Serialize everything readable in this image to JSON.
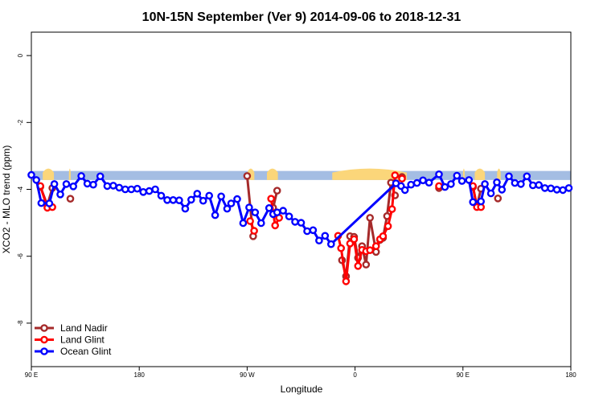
{
  "chart_data": {
    "type": "line",
    "title": "10N-15N September (Ver 9)   2014-09-06 to 2018-12-31",
    "xlabel": "Longitude",
    "ylabel": "XCO2 - MLO trend (ppm)",
    "xlim": [
      -90,
      180
    ],
    "ylim": [
      -9.3,
      0.7
    ],
    "x_ticks": [
      {
        "value": -90,
        "label": "90 E"
      },
      {
        "value": -36,
        "label": "180"
      },
      {
        "value": 18,
        "label": "90 W"
      },
      {
        "value": 72,
        "label": "0"
      },
      {
        "value": 126,
        "label": "90 E"
      },
      {
        "value": 180,
        "label": "180"
      }
    ],
    "y_ticks": [
      0,
      -2,
      -4,
      -6,
      -8
    ],
    "legend_position": "bottom-left",
    "band": {
      "y_top": -3.45,
      "y_bottom": -3.72,
      "color": "#a4bde3",
      "land_color": "#fbd67a"
    },
    "land_segments": [
      [
        -84.3,
        -78.7
      ],
      [
        -71.2,
        -70.3
      ],
      [
        18.0,
        21.6
      ],
      [
        27.9,
        33.4
      ],
      [
        60.6,
        97.9
      ],
      [
        126.0,
        126.9
      ],
      [
        131.9,
        137.0
      ],
      [
        143.1,
        144.9
      ]
    ],
    "series": [
      {
        "name": "Land Nadir",
        "color": "#a52a2a",
        "points": [
          [
            -85.5,
            -3.92
          ],
          [
            -82.0,
            -4.47
          ],
          [
            -79.5,
            -3.96
          ],
          [
            null,
            null
          ],
          [
            -70.5,
            -4.28
          ],
          [
            null,
            null
          ],
          [
            18.0,
            -3.6
          ],
          [
            21.0,
            -5.4
          ],
          [
            null,
            null
          ],
          [
            31.0,
            -4.55
          ],
          [
            33.0,
            -4.04
          ],
          [
            null,
            null
          ],
          [
            65.5,
            -6.12
          ],
          [
            67.5,
            -6.6
          ],
          [
            69.5,
            -5.4
          ],
          [
            71.5,
            -5.42
          ],
          [
            73.5,
            -6.05
          ],
          [
            75.5,
            -5.7
          ],
          [
            77.5,
            -6.25
          ],
          [
            79.5,
            -4.85
          ],
          [
            82.5,
            -5.87
          ],
          [
            84.5,
            -5.51
          ],
          [
            86.0,
            -5.45
          ],
          [
            88.0,
            -4.8
          ],
          [
            90.0,
            -3.8
          ],
          [
            92.0,
            -4.18
          ],
          [
            null,
            null
          ],
          [
            95.5,
            -3.63
          ],
          [
            null,
            null
          ],
          [
            114.0,
            -3.96
          ],
          [
            null,
            null
          ],
          [
            131.0,
            -3.93
          ],
          [
            133.0,
            -4.5
          ],
          [
            135.0,
            -3.98
          ],
          [
            null,
            null
          ],
          [
            143.5,
            -4.27
          ]
        ]
      },
      {
        "name": "Land Glint",
        "color": "#ff0000",
        "points": [
          [
            -85.5,
            -3.9
          ],
          [
            -82.0,
            -4.55
          ],
          [
            -79.5,
            -4.53
          ],
          [
            null,
            null
          ],
          [
            19.5,
            -4.95
          ],
          [
            21.5,
            -5.24
          ],
          [
            null,
            null
          ],
          [
            30.0,
            -4.28
          ],
          [
            32.0,
            -5.08
          ],
          [
            34.0,
            -4.85
          ],
          [
            null,
            null
          ],
          [
            63.5,
            -5.39
          ],
          [
            65.0,
            -5.76
          ],
          [
            67.5,
            -6.75
          ],
          [
            69.5,
            -5.62
          ],
          [
            71.5,
            -5.49
          ],
          [
            73.5,
            -6.29
          ],
          [
            75.5,
            -5.81
          ],
          [
            77.5,
            -5.85
          ],
          [
            79.5,
            -5.82
          ],
          [
            82.5,
            -5.7
          ],
          [
            84.5,
            -5.49
          ],
          [
            86.0,
            -5.4
          ],
          [
            88.5,
            -5.1
          ],
          [
            90.5,
            -4.59
          ],
          [
            92.0,
            -3.58
          ],
          [
            null,
            null
          ],
          [
            95.5,
            -3.68
          ],
          [
            null,
            null
          ],
          [
            114.0,
            -3.9
          ],
          [
            null,
            null
          ],
          [
            131.0,
            -3.9
          ],
          [
            133.0,
            -4.53
          ],
          [
            135.0,
            -4.53
          ]
        ]
      },
      {
        "name": "Ocean Glint",
        "color": "#0000ff",
        "points": [
          [
            -90.0,
            -3.57
          ],
          [
            -87.5,
            -3.72
          ],
          [
            -85.0,
            -4.41
          ],
          [
            -81.0,
            -4.42
          ],
          [
            -78.5,
            -3.84
          ],
          [
            -75.5,
            -4.15
          ],
          [
            -72.5,
            -3.84
          ],
          [
            -69.0,
            -3.91
          ],
          [
            -65.0,
            -3.6
          ],
          [
            -62.0,
            -3.83
          ],
          [
            -59.0,
            -3.86
          ],
          [
            -55.5,
            -3.61
          ],
          [
            -52.0,
            -3.9
          ],
          [
            -49.0,
            -3.89
          ],
          [
            -46.0,
            -3.95
          ],
          [
            -43.0,
            -4.0
          ],
          [
            -40.0,
            -4.0
          ],
          [
            -37.0,
            -3.98
          ],
          [
            -34.0,
            -4.08
          ],
          [
            -31.0,
            -4.05
          ],
          [
            -28.0,
            -4.0
          ],
          [
            -25.0,
            -4.19
          ],
          [
            -22.0,
            -4.32
          ],
          [
            -19.0,
            -4.32
          ],
          [
            -16.0,
            -4.33
          ],
          [
            -13.0,
            -4.58
          ],
          [
            -10.0,
            -4.31
          ],
          [
            -7.0,
            -4.13
          ],
          [
            -4.0,
            -4.34
          ],
          [
            -1.0,
            -4.19
          ],
          [
            2.0,
            -4.77
          ],
          [
            5.0,
            -4.21
          ],
          [
            8.0,
            -4.58
          ],
          [
            10.0,
            -4.42
          ],
          [
            13.0,
            -4.29
          ],
          [
            16.0,
            -5.01
          ],
          [
            19.0,
            -4.54
          ],
          [
            22.0,
            -4.69
          ],
          [
            25.0,
            -5.01
          ],
          [
            29.0,
            -4.56
          ],
          [
            31.0,
            -4.74
          ],
          [
            33.0,
            -4.69
          ],
          [
            36.0,
            -4.64
          ],
          [
            39.0,
            -4.81
          ],
          [
            42.0,
            -4.97
          ],
          [
            45.0,
            -5.0
          ],
          [
            48.0,
            -5.25
          ],
          [
            51.0,
            -5.22
          ],
          [
            54.0,
            -5.53
          ],
          [
            57.0,
            -5.39
          ],
          [
            60.0,
            -5.64
          ],
          [
            92.5,
            -3.82
          ],
          [
            95.0,
            -3.9
          ],
          [
            97.0,
            -4.02
          ],
          [
            100.0,
            -3.86
          ],
          [
            103.0,
            -3.81
          ],
          [
            106.0,
            -3.73
          ],
          [
            109.0,
            -3.8
          ],
          [
            114.0,
            -3.55
          ],
          [
            117.0,
            -3.93
          ],
          [
            120.0,
            -3.84
          ],
          [
            123.0,
            -3.59
          ],
          [
            125.5,
            -3.75
          ],
          [
            129.0,
            -3.72
          ],
          [
            131.0,
            -4.38
          ],
          [
            135.0,
            -4.36
          ],
          [
            137.0,
            -3.84
          ],
          [
            140.0,
            -4.12
          ],
          [
            143.0,
            -3.79
          ],
          [
            145.5,
            -4.01
          ],
          [
            149.0,
            -3.61
          ],
          [
            152.0,
            -3.81
          ],
          [
            155.0,
            -3.84
          ],
          [
            158.0,
            -3.61
          ],
          [
            161.0,
            -3.88
          ],
          [
            164.0,
            -3.87
          ],
          [
            167.0,
            -3.96
          ],
          [
            170.0,
            -3.97
          ],
          [
            173.0,
            -4.01
          ],
          [
            176.0,
            -4.02
          ],
          [
            179.0,
            -3.96
          ]
        ]
      }
    ]
  }
}
